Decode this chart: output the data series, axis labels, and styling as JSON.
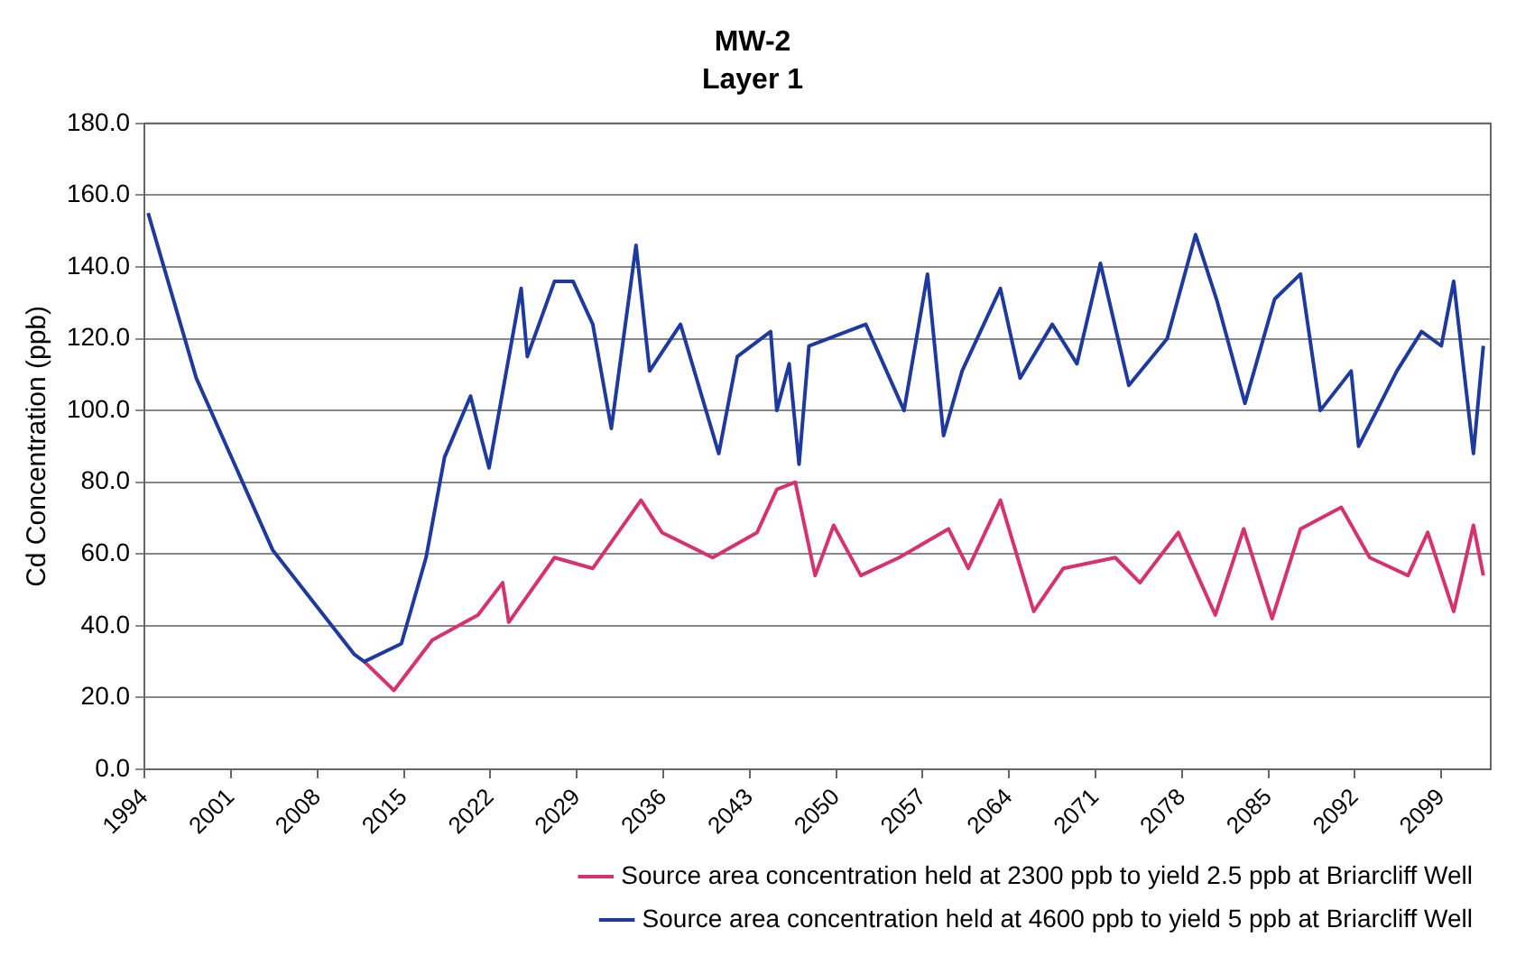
{
  "chart_data": {
    "type": "line",
    "title": "MW-2",
    "subtitle": "Layer 1",
    "ylabel": "Cd Concentration (ppb)",
    "xlim": [
      1994,
      2103
    ],
    "xticks": [
      1994,
      2001,
      2008,
      2015,
      2022,
      2029,
      2036,
      2043,
      2050,
      2057,
      2064,
      2071,
      2078,
      2085,
      2092,
      2099
    ],
    "ylim": [
      0,
      180
    ],
    "yticks": [
      {
        "value": 0,
        "label": "0.0"
      },
      {
        "value": 20,
        "label": "20.0"
      },
      {
        "value": 40,
        "label": "40.0"
      },
      {
        "value": 60,
        "label": "60.0"
      },
      {
        "value": 80,
        "label": "80.0"
      },
      {
        "value": 100,
        "label": "100.0"
      },
      {
        "value": 120,
        "label": "120.0"
      },
      {
        "value": 140,
        "label": "140.0"
      },
      {
        "value": 160,
        "label": "160.0"
      },
      {
        "value": 180,
        "label": "180.0"
      }
    ],
    "grid": "y",
    "legend": "bottom",
    "marker": "none",
    "line_style": "solid",
    "series": [
      {
        "name": "Source area concentration held at 2300 ppb to yield 2.5 ppb at Briarcliff Well",
        "color": "#d6336e",
        "x": [
          2011.8,
          2014.2,
          2017.3,
          2021,
          2023,
          2023.5,
          2027.2,
          2030.3,
          2034.2,
          2035.9,
          2040,
          2043.6,
          2045.2,
          2046.7,
          2048.3,
          2049.8,
          2052,
          2055.1,
          2059.1,
          2060.7,
          2063.3,
          2066,
          2068.4,
          2072.6,
          2074.6,
          2077.7,
          2080.7,
          2083,
          2085.3,
          2087.6,
          2090.9,
          2093.2,
          2096.3,
          2097.9,
          2100,
          2101.6,
          2102.4
        ],
        "values": [
          30,
          22,
          36,
          43,
          52,
          41,
          59,
          56,
          75,
          66,
          59,
          66,
          78,
          80,
          54,
          68,
          54,
          59,
          67,
          56,
          75,
          44,
          56,
          59,
          52,
          66,
          43,
          67,
          42,
          67,
          73,
          59,
          54,
          66,
          44,
          68,
          54
        ]
      },
      {
        "name": "Source area concentration held at 4600 ppb to yield 5 ppb at Briarcliff Well",
        "color": "#1f3a9e",
        "x": [
          1994.3,
          1998.2,
          2004.4,
          2011,
          2011.8,
          2014.8,
          2016.8,
          2018.3,
          2020.4,
          2021.9,
          2024.5,
          2025,
          2027.2,
          2028.7,
          2030.3,
          2031.8,
          2033.8,
          2034.9,
          2037.4,
          2040.5,
          2042,
          2044.7,
          2045.2,
          2046.2,
          2047,
          2047.8,
          2052.4,
          2055.5,
          2057.4,
          2058.7,
          2060.2,
          2063.3,
          2064.9,
          2067.5,
          2069.5,
          2071.4,
          2073.7,
          2076.8,
          2079.1,
          2080.8,
          2083.1,
          2085.5,
          2087.6,
          2089.2,
          2091.7,
          2092.3,
          2095.4,
          2097.4,
          2099,
          2100,
          2101.6,
          2102.4
        ],
        "values": [
          155,
          109,
          61,
          32,
          30,
          35,
          59,
          87,
          104,
          84,
          134,
          115,
          136,
          136,
          124,
          95,
          146,
          111,
          124,
          88,
          115,
          122,
          100,
          113,
          85,
          118,
          124,
          100,
          138,
          93,
          111,
          134,
          109,
          124,
          113,
          141,
          107,
          120,
          149,
          131,
          102,
          131,
          138,
          100,
          111,
          90,
          111,
          122,
          118,
          136,
          88,
          118
        ]
      }
    ]
  }
}
